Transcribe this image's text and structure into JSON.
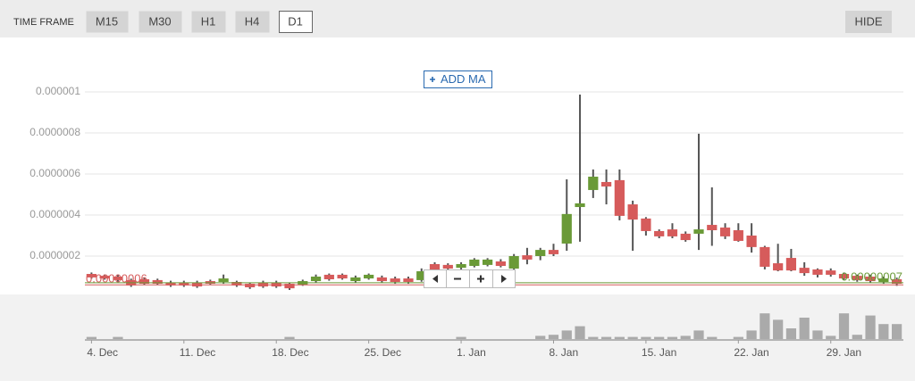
{
  "toolbar": {
    "label": "TIME FRAME",
    "timeframes": [
      "M15",
      "M30",
      "H1",
      "H4",
      "D1"
    ],
    "selected": 4,
    "hide": "HIDE"
  },
  "add_ma": "ADD MA",
  "chart_data": {
    "type": "candlestick",
    "open": [
      1.13e-07,
      1.04e-07,
      1e-07,
      8.3e-08,
      8.7e-08,
      8.3e-08,
      7e-08,
      7e-08,
      7e-08,
      7.8e-08,
      7.4e-08,
      7.4e-08,
      6.5e-08,
      7e-08,
      7e-08,
      6.5e-08,
      6.1e-08,
      7.8e-08,
      1.09e-07,
      1.09e-07,
      7.8e-08,
      9.1e-08,
      9.6e-08,
      9.1e-08,
      9.1e-08,
      8.3e-08,
      1.61e-07,
      1.57e-07,
      1.43e-07,
      1.52e-07,
      1.57e-07,
      1.74e-07,
      1.39e-07,
      2.04e-07,
      2e-07,
      2.3e-07,
      2.61e-07,
      4.39e-07,
      5.22e-07,
      5.61e-07,
      5.7e-07,
      4.52e-07,
      3.83e-07,
      3.22e-07,
      3.3e-07,
      3.09e-07,
      3.09e-07,
      3.52e-07,
      3.39e-07,
      3.26e-07,
      3e-07,
      2.44e-07,
      1.65e-07,
      1.91e-07,
      1.43e-07,
      1.35e-07,
      1.3e-07,
      1.13e-07,
      1.04e-07,
      1e-07,
      7.4e-08,
      8.7e-08
    ],
    "high": [
      1.2e-07,
      1.1e-07,
      1.1e-07,
      9e-08,
      9.5e-08,
      9e-08,
      8e-08,
      8e-08,
      8e-08,
      8.5e-08,
      1.1e-07,
      8e-08,
      7e-08,
      8e-08,
      8e-08,
      7e-08,
      8.5e-08,
      1.1e-07,
      1.15e-07,
      1.15e-07,
      1.05e-07,
      1.15e-07,
      1.05e-07,
      1e-07,
      1e-07,
      1.4e-07,
      1.7e-07,
      1.65e-07,
      1.7e-07,
      1.9e-07,
      1.9e-07,
      1.85e-07,
      2.1e-07,
      2.4e-07,
      2.4e-07,
      2.6e-07,
      5.74e-07,
      9.87e-07,
      6.22e-07,
      6.22e-07,
      6.22e-07,
      4.7e-07,
      3.9e-07,
      3.3e-07,
      3.6e-07,
      3.2e-07,
      7.96e-07,
      5.35e-07,
      3.6e-07,
      3.6e-07,
      3.6e-07,
      2.5e-07,
      2.6e-07,
      2.35e-07,
      1.7e-07,
      1.4e-07,
      1.4e-07,
      1.2e-07,
      1.1e-07,
      1.1e-07,
      1e-07,
      9.5e-08
    ],
    "low": [
      9e-08,
      8.5e-08,
      7.5e-08,
      5e-08,
      6e-08,
      6e-08,
      5e-08,
      5e-08,
      4.5e-08,
      6e-08,
      6.5e-08,
      5e-08,
      4e-08,
      4.5e-08,
      4.5e-08,
      3.5e-08,
      5.5e-08,
      7e-08,
      8e-08,
      8.5e-08,
      7e-08,
      8.5e-08,
      7e-08,
      6.5e-08,
      6.5e-08,
      7.5e-08,
      1.1e-07,
      1.3e-07,
      1.35e-07,
      1.45e-07,
      1.5e-07,
      1.45e-07,
      1.3e-07,
      1.6e-07,
      1.8e-07,
      2e-07,
      2.26e-07,
      2.7e-07,
      4.83e-07,
      4.52e-07,
      3.74e-07,
      2.26e-07,
      3e-07,
      2.87e-07,
      2.87e-07,
      2.7e-07,
      2.3e-07,
      2.5e-07,
      2.83e-07,
      2.7e-07,
      2.17e-07,
      1.35e-07,
      1.26e-07,
      1.26e-07,
      1.04e-07,
      9.6e-08,
      1e-07,
      8.5e-08,
      7.5e-08,
      7e-08,
      6.5e-08,
      5.5e-08
    ],
    "close": [
      9.6e-08,
      9.1e-08,
      8.3e-08,
      5.7e-08,
      6.5e-08,
      6.5e-08,
      5.7e-08,
      5.7e-08,
      5.2e-08,
      6.5e-08,
      9.1e-08,
      5.7e-08,
      4.8e-08,
      5.2e-08,
      5.2e-08,
      4.3e-08,
      7.8e-08,
      1e-07,
      8.7e-08,
      9.1e-08,
      9.6e-08,
      1.09e-07,
      7.8e-08,
      7.4e-08,
      7.4e-08,
      1.26e-07,
      1.17e-07,
      1.39e-07,
      1.61e-07,
      1.83e-07,
      1.83e-07,
      1.52e-07,
      2e-07,
      1.83e-07,
      2.3e-07,
      2.09e-07,
      4.05e-07,
      4.57e-07,
      5.87e-07,
      5.39e-07,
      3.96e-07,
      3.78e-07,
      3.22e-07,
      2.96e-07,
      2.96e-07,
      2.78e-07,
      3.3e-07,
      3.26e-07,
      2.96e-07,
      2.74e-07,
      2.44e-07,
      1.48e-07,
      1.3e-07,
      1.3e-07,
      1.17e-07,
      1.09e-07,
      1.09e-07,
      9.1e-08,
      8.3e-08,
      7.8e-08,
      9.1e-08,
      6.5e-08
    ],
    "up_color": "#6a9a37",
    "down_color": "#d65b5b",
    "wick_color": "#555555",
    "volume": [
      2,
      0,
      2,
      0,
      0,
      0,
      0,
      0,
      0,
      0,
      0,
      0,
      0,
      0,
      0,
      2,
      0,
      0,
      0,
      0,
      0,
      0,
      0,
      0,
      0,
      0,
      0,
      0,
      2,
      0,
      0,
      0,
      0,
      0,
      3,
      4,
      8,
      12,
      2,
      2,
      2,
      2,
      2,
      2,
      2,
      3,
      8,
      2,
      0,
      2,
      8,
      24,
      18,
      10,
      20,
      8,
      3,
      24,
      4,
      22,
      14,
      14
    ],
    "volume_lim": [
      0,
      30
    ],
    "volume_color": "#aaaaaa",
    "price_lines": [
      {
        "label": "0.00000006",
        "value": 6e-08,
        "color": "#d65b5b"
      },
      {
        "label": "0.00000007",
        "value": 7e-08,
        "color": "#6a9a37"
      }
    ],
    "xlim": [
      -0.5,
      61.5
    ],
    "xticks": [
      {
        "value": 0,
        "label": "4. Dec"
      },
      {
        "value": 7,
        "label": "11. Dec"
      },
      {
        "value": 14,
        "label": "18. Dec"
      },
      {
        "value": 21,
        "label": "25. Dec"
      },
      {
        "value": 28,
        "label": "1. Jan"
      },
      {
        "value": 35,
        "label": "8. Jan"
      },
      {
        "value": 42,
        "label": "15. Jan"
      },
      {
        "value": 49,
        "label": "22. Jan"
      },
      {
        "value": 56,
        "label": "29. Jan"
      }
    ],
    "ylim": [
      0,
      1.2e-06
    ],
    "yticks": [
      {
        "value": 2e-07,
        "label": "0.0000002"
      },
      {
        "value": 4e-07,
        "label": "0.0000004"
      },
      {
        "value": 6e-07,
        "label": "0.0000006"
      },
      {
        "value": 8e-07,
        "label": "0.0000008"
      },
      {
        "value": 1e-06,
        "label": "0.000001"
      }
    ],
    "grid": true
  }
}
